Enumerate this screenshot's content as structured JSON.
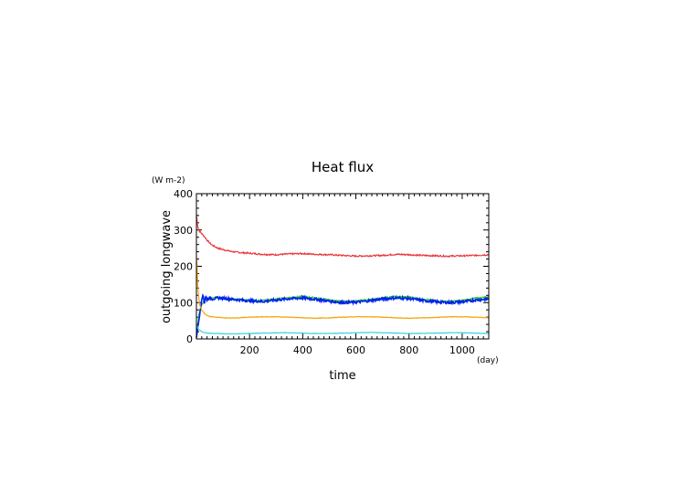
{
  "chart_data": {
    "type": "line",
    "title": "Heat flux",
    "xlabel": "time",
    "xunit": "(day)",
    "ylabel": "outgoing longwave",
    "yunit": "(W m-2)",
    "xlim": [
      0,
      1100
    ],
    "ylim": [
      0,
      400
    ],
    "xticks": [
      200,
      400,
      600,
      800,
      1000
    ],
    "yticks": [
      0,
      100,
      200,
      300,
      400
    ],
    "grid": false,
    "series": [
      {
        "color": "#e8383d",
        "x": [
          0,
          5,
          10,
          20,
          30,
          40,
          50,
          60,
          80,
          100,
          130,
          160,
          200,
          250,
          300,
          350,
          400,
          450,
          500,
          550,
          600,
          650,
          700,
          750,
          800,
          850,
          900,
          950,
          1000,
          1050,
          1100
        ],
        "y": [
          340,
          310,
          298,
          290,
          282,
          272,
          264,
          258,
          250,
          246,
          241,
          238,
          236,
          233,
          232,
          234,
          235,
          233,
          232,
          230,
          228,
          229,
          230,
          233,
          232,
          230,
          229,
          228,
          229,
          230,
          232
        ]
      },
      {
        "color": "#22cc22",
        "x": [
          0,
          5,
          10,
          20,
          30,
          40,
          60,
          80,
          100,
          150,
          200,
          250,
          300,
          350,
          400,
          450,
          500,
          550,
          600,
          650,
          700,
          750,
          800,
          850,
          900,
          950,
          1000,
          1050,
          1100
        ],
        "y": [
          10,
          40,
          70,
          95,
          105,
          110,
          112,
          113,
          112,
          110,
          106,
          106,
          110,
          114,
          117,
          113,
          107,
          103,
          104,
          108,
          113,
          117,
          115,
          110,
          105,
          103,
          106,
          112,
          116
        ]
      },
      {
        "color": "#0022ee",
        "x": [
          0,
          5,
          10,
          15,
          20,
          25,
          30,
          35,
          40,
          50,
          60,
          80,
          100,
          150,
          200,
          250,
          300,
          350,
          400,
          450,
          500,
          550,
          600,
          650,
          700,
          750,
          800,
          850,
          900,
          950,
          1000,
          1050,
          1100
        ],
        "y": [
          5,
          30,
          55,
          85,
          105,
          125,
          98,
          118,
          108,
          113,
          110,
          113,
          112,
          108,
          105,
          103,
          107,
          111,
          113,
          109,
          104,
          100,
          101,
          105,
          110,
          113,
          111,
          106,
          102,
          100,
          102,
          107,
          110
        ]
      },
      {
        "color": "#f5a20a",
        "x": [
          0,
          2,
          4,
          8,
          12,
          20,
          30,
          40,
          50,
          70,
          100,
          150,
          200,
          250,
          300,
          350,
          400,
          450,
          500,
          550,
          600,
          650,
          700,
          750,
          800,
          850,
          900,
          950,
          1000,
          1050,
          1100
        ],
        "y": [
          225,
          200,
          160,
          120,
          95,
          80,
          70,
          65,
          62,
          60,
          58,
          58,
          60,
          61,
          61,
          60,
          58,
          57,
          58,
          60,
          61,
          61,
          60,
          58,
          57,
          58,
          59,
          61,
          61,
          60,
          58
        ]
      },
      {
        "color": "#3ad4e0",
        "x": [
          0,
          5,
          10,
          20,
          30,
          40,
          60,
          80,
          100,
          150,
          200,
          250,
          300,
          350,
          400,
          450,
          500,
          550,
          600,
          650,
          700,
          750,
          800,
          850,
          900,
          950,
          1000,
          1050,
          1100
        ],
        "y": [
          40,
          30,
          25,
          20,
          18,
          16,
          15,
          15,
          14,
          14,
          15,
          16,
          17,
          17,
          16,
          15,
          15,
          16,
          17,
          18,
          17,
          16,
          15,
          15,
          16,
          17,
          17,
          16,
          15
        ]
      }
    ]
  }
}
